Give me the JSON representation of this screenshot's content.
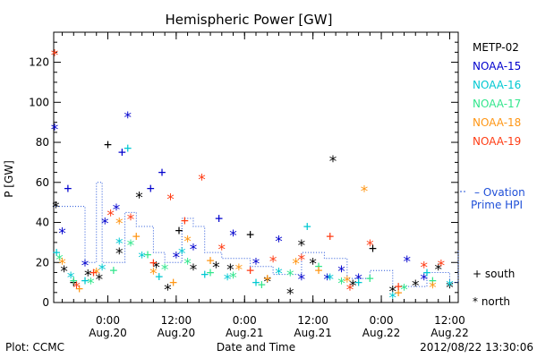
{
  "chart_data": {
    "type": "scatter",
    "title": "Hemispheric Power [GW]",
    "ylabel": "P [GW]",
    "xlabel": "Date and Time",
    "ylim": [
      0,
      135
    ],
    "xlim": [
      "2012-08-19 14:30",
      "2012-08-22 13:30"
    ],
    "y_ticks": [
      0,
      20,
      40,
      60,
      80,
      100,
      120
    ],
    "x_ticks": [
      {
        "t": "2012-08-20 00:00",
        "label1": "0:00",
        "label2": "Aug.20"
      },
      {
        "t": "2012-08-20 12:00",
        "label1": "12:00",
        "label2": "Aug.20"
      },
      {
        "t": "2012-08-21 00:00",
        "label1": "0:00",
        "label2": "Aug.21"
      },
      {
        "t": "2012-08-21 12:00",
        "label1": "12:00",
        "label2": "Aug.21"
      },
      {
        "t": "2012-08-22 00:00",
        "label1": "0:00",
        "label2": "Aug.22"
      },
      {
        "t": "2012-08-22 12:00",
        "label1": "12:00",
        "label2": "Aug.22"
      }
    ],
    "grid": false,
    "legend_position": "right",
    "series": [
      {
        "name": "METP-02",
        "color": "#000000",
        "values": [
          {
            "x": "2012-08-19 14:52",
            "y": 48,
            "m": "north"
          },
          {
            "x": "2012-08-19 16:20",
            "y": 16,
            "m": "north"
          },
          {
            "x": "2012-08-19 18:00",
            "y": 10,
            "m": "south"
          },
          {
            "x": "2012-08-19 20:30",
            "y": 14,
            "m": "north"
          },
          {
            "x": "2012-08-19 22:30",
            "y": 12,
            "m": "north"
          },
          {
            "x": "2012-08-20 00:00",
            "y": 79,
            "m": "south"
          },
          {
            "x": "2012-08-20 02:00",
            "y": 25,
            "m": "north"
          },
          {
            "x": "2012-08-20 05:30",
            "y": 53,
            "m": "north"
          },
          {
            "x": "2012-08-20 08:30",
            "y": 18,
            "m": "north"
          },
          {
            "x": "2012-08-20 10:30",
            "y": 7,
            "m": "north"
          },
          {
            "x": "2012-08-20 12:30",
            "y": 36,
            "m": "south"
          },
          {
            "x": "2012-08-20 15:00",
            "y": 17,
            "m": "north"
          },
          {
            "x": "2012-08-20 19:00",
            "y": 18,
            "m": "north"
          },
          {
            "x": "2012-08-20 21:30",
            "y": 17,
            "m": "north"
          },
          {
            "x": "2012-08-21 01:00",
            "y": 34,
            "m": "south"
          },
          {
            "x": "2012-08-21 04:00",
            "y": 11,
            "m": "north"
          },
          {
            "x": "2012-08-21 08:00",
            "y": 5,
            "m": "north"
          },
          {
            "x": "2012-08-21 10:00",
            "y": 29,
            "m": "north"
          },
          {
            "x": "2012-08-21 12:00",
            "y": 20,
            "m": "north"
          },
          {
            "x": "2012-08-21 15:30",
            "y": 71,
            "m": "north"
          },
          {
            "x": "2012-08-21 19:00",
            "y": 9,
            "m": "north"
          },
          {
            "x": "2012-08-21 22:30",
            "y": 27,
            "m": "south"
          },
          {
            "x": "2012-08-22 02:00",
            "y": 6,
            "m": "north"
          },
          {
            "x": "2012-08-22 06:00",
            "y": 9,
            "m": "north"
          },
          {
            "x": "2012-08-22 10:00",
            "y": 17,
            "m": "north"
          },
          {
            "x": "2012-08-22 12:00",
            "y": 8,
            "m": "north"
          }
        ]
      },
      {
        "name": "NOAA-15",
        "color": "#0000cd",
        "values": [
          {
            "x": "2012-08-19 14:40",
            "y": 87,
            "m": "north"
          },
          {
            "x": "2012-08-19 16:00",
            "y": 35,
            "m": "north"
          },
          {
            "x": "2012-08-19 17:00",
            "y": 57,
            "m": "south"
          },
          {
            "x": "2012-08-19 20:00",
            "y": 19,
            "m": "north"
          },
          {
            "x": "2012-08-19 23:30",
            "y": 40,
            "m": "north"
          },
          {
            "x": "2012-08-20 01:30",
            "y": 47,
            "m": "north"
          },
          {
            "x": "2012-08-20 02:30",
            "y": 75,
            "m": "south"
          },
          {
            "x": "2012-08-20 03:30",
            "y": 93,
            "m": "north"
          },
          {
            "x": "2012-08-20 07:30",
            "y": 57,
            "m": "south"
          },
          {
            "x": "2012-08-20 09:30",
            "y": 65,
            "m": "south"
          },
          {
            "x": "2012-08-20 12:00",
            "y": 23,
            "m": "north"
          },
          {
            "x": "2012-08-20 15:00",
            "y": 27,
            "m": "north"
          },
          {
            "x": "2012-08-20 19:30",
            "y": 42,
            "m": "south"
          },
          {
            "x": "2012-08-20 22:00",
            "y": 34,
            "m": "north"
          },
          {
            "x": "2012-08-21 02:00",
            "y": 20,
            "m": "north"
          },
          {
            "x": "2012-08-21 06:00",
            "y": 31,
            "m": "north"
          },
          {
            "x": "2012-08-21 10:00",
            "y": 12,
            "m": "north"
          },
          {
            "x": "2012-08-21 14:30",
            "y": 12,
            "m": "north"
          },
          {
            "x": "2012-08-21 17:00",
            "y": 16,
            "m": "north"
          },
          {
            "x": "2012-08-21 20:00",
            "y": 12,
            "m": "north"
          },
          {
            "x": "2012-08-22 04:30",
            "y": 21,
            "m": "north"
          },
          {
            "x": "2012-08-22 07:30",
            "y": 12,
            "m": "north"
          }
        ]
      },
      {
        "name": "NOAA-16",
        "color": "#00c8d2",
        "values": [
          {
            "x": "2012-08-19 15:00",
            "y": 25,
            "m": "south"
          },
          {
            "x": "2012-08-19 17:30",
            "y": 13,
            "m": "north"
          },
          {
            "x": "2012-08-19 20:00",
            "y": 11,
            "m": "south"
          },
          {
            "x": "2012-08-19 23:00",
            "y": 17,
            "m": "north"
          },
          {
            "x": "2012-08-20 02:00",
            "y": 30,
            "m": "north"
          },
          {
            "x": "2012-08-20 03:30",
            "y": 77,
            "m": "south"
          },
          {
            "x": "2012-08-20 06:00",
            "y": 23,
            "m": "north"
          },
          {
            "x": "2012-08-20 09:00",
            "y": 13,
            "m": "south"
          },
          {
            "x": "2012-08-20 13:00",
            "y": 25,
            "m": "north"
          },
          {
            "x": "2012-08-20 17:00",
            "y": 14,
            "m": "south"
          },
          {
            "x": "2012-08-20 21:00",
            "y": 12,
            "m": "north"
          },
          {
            "x": "2012-08-21 02:00",
            "y": 10,
            "m": "south"
          },
          {
            "x": "2012-08-21 06:00",
            "y": 15,
            "m": "north"
          },
          {
            "x": "2012-08-21 11:00",
            "y": 38,
            "m": "south"
          },
          {
            "x": "2012-08-21 15:00",
            "y": 12,
            "m": "north"
          },
          {
            "x": "2012-08-21 20:00",
            "y": 10,
            "m": "south"
          },
          {
            "x": "2012-08-22 02:00",
            "y": 3,
            "m": "north"
          },
          {
            "x": "2012-08-22 08:00",
            "y": 15,
            "m": "south"
          },
          {
            "x": "2012-08-22 12:00",
            "y": 9,
            "m": "north"
          }
        ]
      },
      {
        "name": "NOAA-17",
        "color": "#32e68c",
        "values": [
          {
            "x": "2012-08-19 15:30",
            "y": 22,
            "m": "north"
          },
          {
            "x": "2012-08-19 18:00",
            "y": 11,
            "m": "south"
          },
          {
            "x": "2012-08-19 21:00",
            "y": 10,
            "m": "north"
          },
          {
            "x": "2012-08-20 01:00",
            "y": 16,
            "m": "south"
          },
          {
            "x": "2012-08-20 04:00",
            "y": 29,
            "m": "north"
          },
          {
            "x": "2012-08-20 07:00",
            "y": 24,
            "m": "south"
          },
          {
            "x": "2012-08-20 10:00",
            "y": 17,
            "m": "north"
          },
          {
            "x": "2012-08-20 14:00",
            "y": 20,
            "m": "north"
          },
          {
            "x": "2012-08-20 18:00",
            "y": 15,
            "m": "south"
          },
          {
            "x": "2012-08-20 22:00",
            "y": 13,
            "m": "north"
          },
          {
            "x": "2012-08-21 03:00",
            "y": 9,
            "m": "south"
          },
          {
            "x": "2012-08-21 08:00",
            "y": 14,
            "m": "north"
          },
          {
            "x": "2012-08-21 13:00",
            "y": 18,
            "m": "south"
          },
          {
            "x": "2012-08-21 17:00",
            "y": 10,
            "m": "north"
          },
          {
            "x": "2012-08-21 22:00",
            "y": 12,
            "m": "south"
          },
          {
            "x": "2012-08-22 04:00",
            "y": 7,
            "m": "north"
          },
          {
            "x": "2012-08-22 09:00",
            "y": 11,
            "m": "south"
          }
        ]
      },
      {
        "name": "NOAA-18",
        "color": "#ff9614",
        "values": [
          {
            "x": "2012-08-19 16:00",
            "y": 20,
            "m": "north"
          },
          {
            "x": "2012-08-19 19:00",
            "y": 7,
            "m": "south"
          },
          {
            "x": "2012-08-19 22:00",
            "y": 15,
            "m": "north"
          },
          {
            "x": "2012-08-20 02:00",
            "y": 40,
            "m": "north"
          },
          {
            "x": "2012-08-20 05:00",
            "y": 33,
            "m": "south"
          },
          {
            "x": "2012-08-20 08:00",
            "y": 15,
            "m": "north"
          },
          {
            "x": "2012-08-20 11:30",
            "y": 10,
            "m": "south"
          },
          {
            "x": "2012-08-20 14:00",
            "y": 31,
            "m": "north"
          },
          {
            "x": "2012-08-20 18:00",
            "y": 21,
            "m": "south"
          },
          {
            "x": "2012-08-20 23:00",
            "y": 17,
            "m": "north"
          },
          {
            "x": "2012-08-21 04:00",
            "y": 12,
            "m": "south"
          },
          {
            "x": "2012-08-21 09:00",
            "y": 20,
            "m": "north"
          },
          {
            "x": "2012-08-21 13:00",
            "y": 16,
            "m": "south"
          },
          {
            "x": "2012-08-21 18:00",
            "y": 11,
            "m": "north"
          },
          {
            "x": "2012-08-21 21:00",
            "y": 56,
            "m": "north"
          },
          {
            "x": "2012-08-22 03:00",
            "y": 5,
            "m": "south"
          },
          {
            "x": "2012-08-22 09:00",
            "y": 8,
            "m": "north"
          }
        ]
      },
      {
        "name": "NOAA-19",
        "color": "#ff3c14",
        "values": [
          {
            "x": "2012-08-19 14:40",
            "y": 124,
            "m": "north"
          },
          {
            "x": "2012-08-19 18:30",
            "y": 8,
            "m": "north"
          },
          {
            "x": "2012-08-19 21:30",
            "y": 15,
            "m": "south"
          },
          {
            "x": "2012-08-20 00:30",
            "y": 44,
            "m": "north"
          },
          {
            "x": "2012-08-20 04:00",
            "y": 42,
            "m": "north"
          },
          {
            "x": "2012-08-20 08:00",
            "y": 20,
            "m": "south"
          },
          {
            "x": "2012-08-20 11:00",
            "y": 52,
            "m": "north"
          },
          {
            "x": "2012-08-20 13:30",
            "y": 41,
            "m": "south"
          },
          {
            "x": "2012-08-20 16:30",
            "y": 62,
            "m": "north"
          },
          {
            "x": "2012-08-20 20:00",
            "y": 27,
            "m": "north"
          },
          {
            "x": "2012-08-21 01:00",
            "y": 16,
            "m": "south"
          },
          {
            "x": "2012-08-21 05:00",
            "y": 21,
            "m": "north"
          },
          {
            "x": "2012-08-21 10:00",
            "y": 22,
            "m": "north"
          },
          {
            "x": "2012-08-21 15:00",
            "y": 33,
            "m": "south"
          },
          {
            "x": "2012-08-21 18:30",
            "y": 7,
            "m": "north"
          },
          {
            "x": "2012-08-21 22:00",
            "y": 29,
            "m": "north"
          },
          {
            "x": "2012-08-22 03:00",
            "y": 8,
            "m": "south"
          },
          {
            "x": "2012-08-22 07:30",
            "y": 18,
            "m": "north"
          },
          {
            "x": "2012-08-22 10:30",
            "y": 19,
            "m": "north"
          }
        ]
      },
      {
        "name": "Ovation Prime HPI",
        "color": "#2050d8",
        "style": "dotted",
        "values": [
          {
            "x": "2012-08-19 14:30",
            "y": 48
          },
          {
            "x": "2012-08-19 20:00",
            "y": 20
          },
          {
            "x": "2012-08-19 22:00",
            "y": 60
          },
          {
            "x": "2012-08-19 23:00",
            "y": 20
          },
          {
            "x": "2012-08-20 03:00",
            "y": 45
          },
          {
            "x": "2012-08-20 05:00",
            "y": 38
          },
          {
            "x": "2012-08-20 08:00",
            "y": 25
          },
          {
            "x": "2012-08-20 10:00",
            "y": 20
          },
          {
            "x": "2012-08-20 13:00",
            "y": 42
          },
          {
            "x": "2012-08-20 15:00",
            "y": 38
          },
          {
            "x": "2012-08-20 17:00",
            "y": 25
          },
          {
            "x": "2012-08-20 20:00",
            "y": 22
          },
          {
            "x": "2012-08-21 01:00",
            "y": 18
          },
          {
            "x": "2012-08-21 05:00",
            "y": 14
          },
          {
            "x": "2012-08-21 10:00",
            "y": 25
          },
          {
            "x": "2012-08-21 14:00",
            "y": 22
          },
          {
            "x": "2012-08-21 18:00",
            "y": 12
          },
          {
            "x": "2012-08-21 22:00",
            "y": 16
          },
          {
            "x": "2012-08-22 02:00",
            "y": 8
          },
          {
            "x": "2012-08-22 08:00",
            "y": 15
          },
          {
            "x": "2012-08-22 12:00",
            "y": 10
          },
          {
            "x": "2012-08-22 13:30",
            "y": 26
          }
        ]
      }
    ],
    "legend_markers": [
      {
        "symbol": "+",
        "label": "south"
      },
      {
        "symbol": "*",
        "label": "north"
      }
    ],
    "footer": {
      "left": "Plot: CCMC",
      "right": "2012/08/22 13:30:06"
    }
  }
}
